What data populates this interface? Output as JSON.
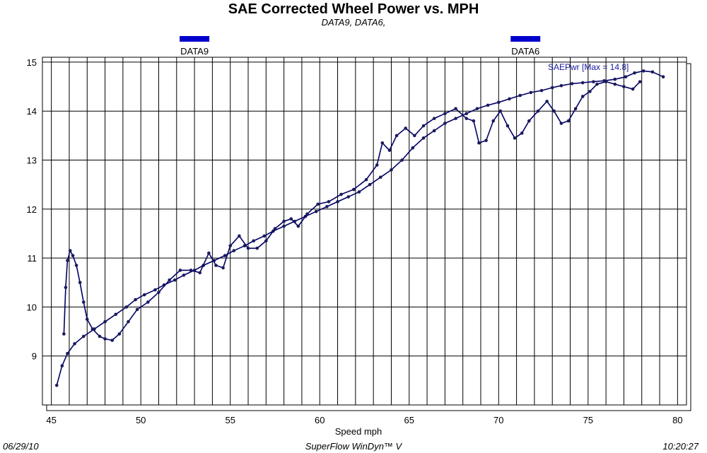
{
  "chart_data": {
    "type": "line",
    "title": "SAE Corrected Wheel Power vs. MPH",
    "subtitle": "DATA9, DATA6,",
    "xlabel": "Speed   mph",
    "ylabel": "",
    "xlim": [
      44.5,
      80.5
    ],
    "ylim": [
      8.0,
      15.1
    ],
    "x_ticks": [
      "45",
      "50",
      "55",
      "60",
      "65",
      "70",
      "75",
      "80"
    ],
    "y_ticks": [
      "9",
      "10",
      "11",
      "12",
      "13",
      "14",
      "15"
    ],
    "grid": true,
    "legend": [
      "DATA9",
      "DATA6"
    ],
    "annotation": "SAEPwr [Max = 14.8]",
    "line_color": "#000066",
    "marker_color": "#1a1a5e",
    "legend_color": "#0000cc",
    "series": [
      {
        "name": "DATA9",
        "x": [
          45.3,
          45.6,
          45.9,
          46.3,
          46.8,
          47.4,
          48.0,
          48.6,
          49.2,
          49.7,
          50.2,
          50.8,
          51.3,
          51.9,
          52.4,
          53.0,
          53.5,
          54.1,
          54.7,
          55.2,
          55.8,
          56.3,
          56.9,
          57.4,
          58.0,
          58.6,
          59.2,
          59.8,
          60.4,
          61.0,
          61.6,
          62.2,
          62.8,
          63.4,
          64.0,
          64.6,
          65.2,
          65.8,
          66.4,
          67.0,
          67.6,
          68.2,
          68.8,
          69.4,
          70.0,
          70.6,
          71.2,
          71.8,
          72.4,
          73.0,
          73.5,
          74.1,
          74.7,
          75.3,
          75.9,
          76.5,
          77.1,
          77.6,
          78.1,
          78.6,
          79.2
        ],
        "values": [
          8.4,
          8.8,
          9.05,
          9.25,
          9.4,
          9.55,
          9.7,
          9.85,
          10.0,
          10.15,
          10.25,
          10.35,
          10.45,
          10.55,
          10.65,
          10.75,
          10.85,
          10.95,
          11.05,
          11.15,
          11.25,
          11.35,
          11.45,
          11.55,
          11.65,
          11.75,
          11.85,
          11.95,
          12.05,
          12.15,
          12.25,
          12.35,
          12.5,
          12.65,
          12.8,
          13.0,
          13.25,
          13.45,
          13.6,
          13.75,
          13.85,
          13.95,
          14.05,
          14.12,
          14.18,
          14.25,
          14.32,
          14.38,
          14.42,
          14.48,
          14.52,
          14.56,
          14.58,
          14.6,
          14.62,
          14.65,
          14.7,
          14.78,
          14.82,
          14.8,
          14.7
        ]
      },
      {
        "name": "DATA6",
        "x": [
          45.7,
          45.8,
          45.9,
          46.05,
          46.2,
          46.4,
          46.6,
          46.8,
          47.0,
          47.3,
          47.7,
          48.0,
          48.4,
          48.8,
          49.3,
          49.8,
          50.4,
          51.0,
          51.6,
          52.2,
          52.8,
          53.3,
          53.8,
          54.2,
          54.6,
          55.0,
          55.5,
          56.0,
          56.5,
          57.0,
          57.5,
          58.0,
          58.4,
          58.8,
          59.3,
          59.9,
          60.5,
          61.2,
          61.9,
          62.6,
          63.2,
          63.5,
          63.9,
          64.3,
          64.8,
          65.3,
          65.8,
          66.4,
          67.0,
          67.6,
          68.2,
          68.6,
          68.9,
          69.3,
          69.7,
          70.1,
          70.5,
          70.9,
          71.3,
          71.7,
          72.2,
          72.7,
          73.1,
          73.5,
          73.9,
          74.3,
          74.7,
          75.1,
          75.5,
          76.0,
          76.5,
          77.0,
          77.5,
          77.9
        ],
        "values": [
          9.45,
          10.4,
          10.95,
          11.15,
          11.05,
          10.85,
          10.5,
          10.1,
          9.75,
          9.55,
          9.4,
          9.35,
          9.32,
          9.45,
          9.7,
          9.95,
          10.1,
          10.3,
          10.55,
          10.75,
          10.75,
          10.7,
          11.1,
          10.85,
          10.8,
          11.25,
          11.45,
          11.2,
          11.2,
          11.35,
          11.6,
          11.75,
          11.8,
          11.65,
          11.9,
          12.1,
          12.15,
          12.3,
          12.4,
          12.6,
          12.9,
          13.35,
          13.2,
          13.5,
          13.65,
          13.5,
          13.7,
          13.85,
          13.95,
          14.05,
          13.85,
          13.8,
          13.35,
          13.4,
          13.8,
          14.0,
          13.7,
          13.45,
          13.55,
          13.8,
          14.0,
          14.2,
          14.0,
          13.75,
          13.8,
          14.05,
          14.3,
          14.4,
          14.55,
          14.6,
          14.55,
          14.5,
          14.45,
          14.6
        ]
      }
    ]
  },
  "footer": {
    "date": "06/29/10",
    "center": "SuperFlow WinDyn™ V",
    "time": "10:20:27"
  }
}
